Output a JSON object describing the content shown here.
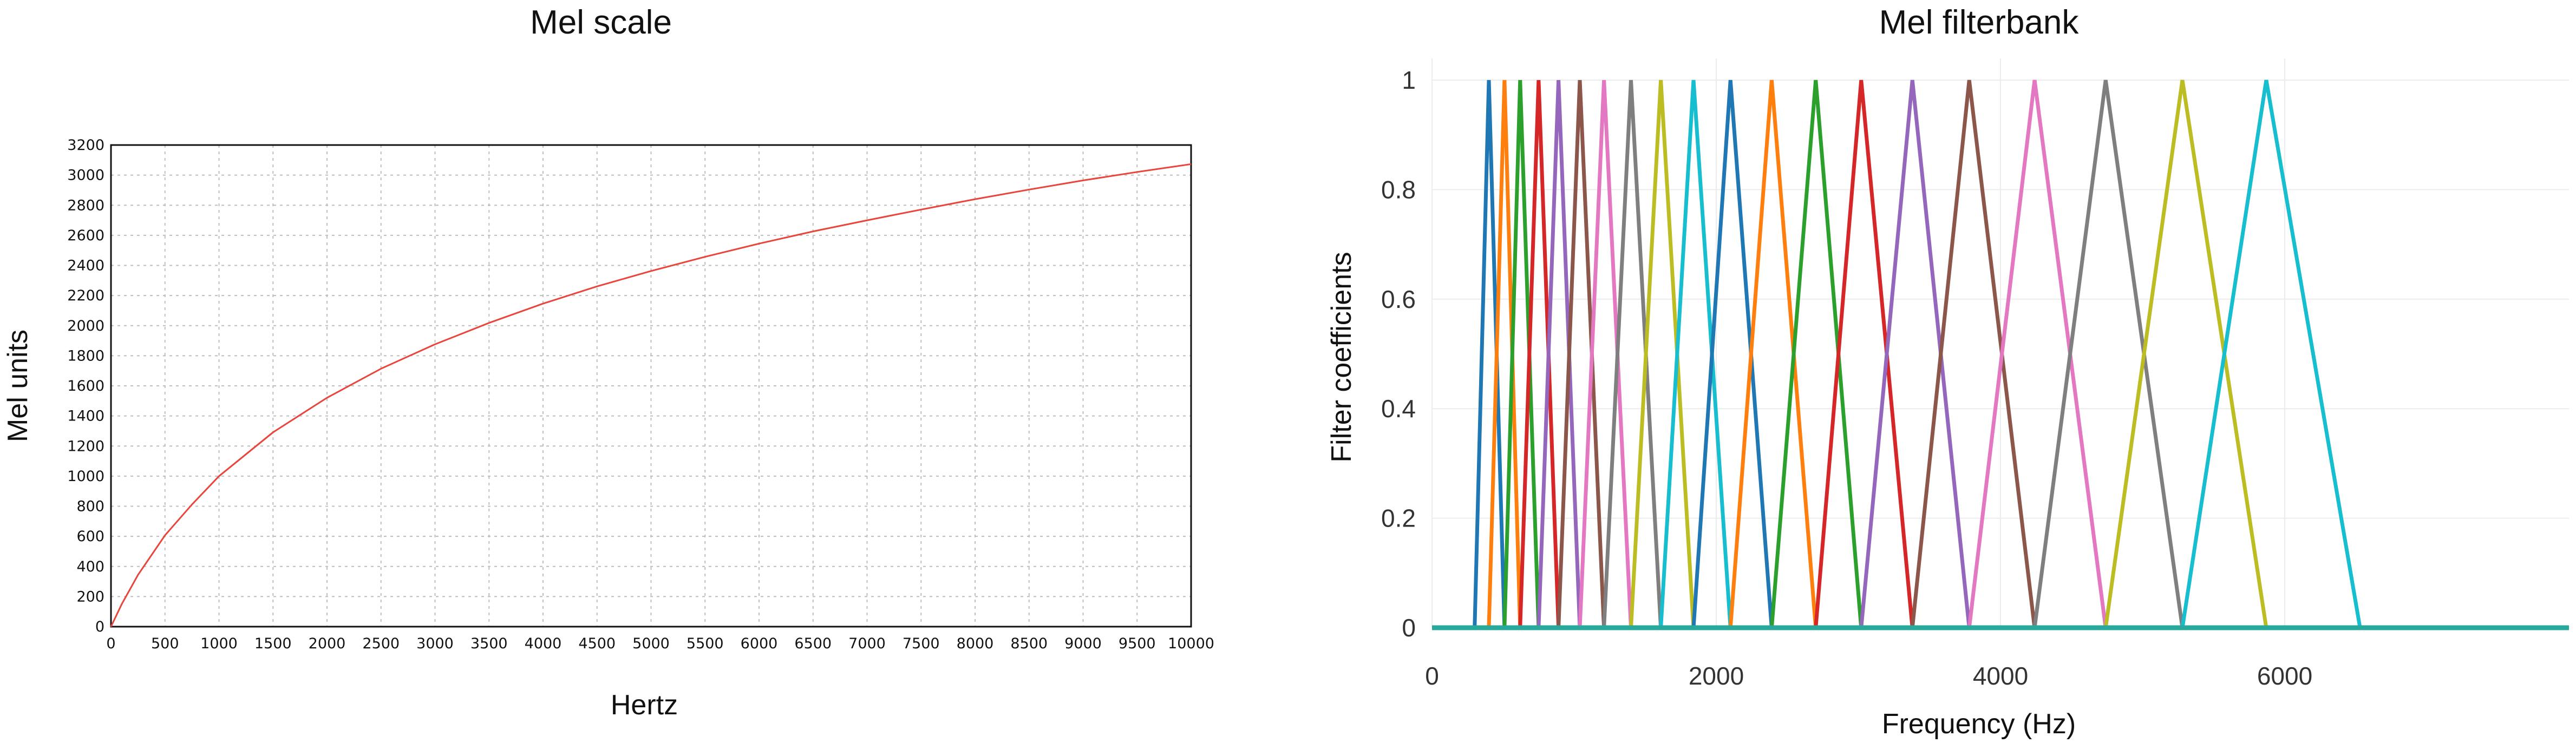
{
  "chart_data": [
    {
      "type": "line",
      "title": "Mel scale",
      "xlabel": "Hertz",
      "ylabel": "Mel units",
      "xlim": [
        0,
        10000
      ],
      "ylim": [
        0,
        3200
      ],
      "xticks": [
        0,
        500,
        1000,
        1500,
        2000,
        2500,
        3000,
        3500,
        4000,
        4500,
        5000,
        5500,
        6000,
        6500,
        7000,
        7500,
        8000,
        8500,
        9000,
        9500,
        10000
      ],
      "yticks": [
        0,
        200,
        400,
        600,
        800,
        1000,
        1200,
        1400,
        1600,
        1800,
        2000,
        2200,
        2400,
        2600,
        2800,
        3000,
        3200
      ],
      "grid": true,
      "line_color": "#e8453c",
      "series": [
        {
          "x": [
            0,
            100,
            250,
            500,
            750,
            1000,
            1500,
            2000,
            2500,
            3000,
            3500,
            4000,
            4500,
            5000,
            5500,
            6000,
            6500,
            7000,
            7500,
            8000,
            8500,
            9000,
            9500,
            10000
          ],
          "values": [
            0,
            150,
            344,
            607,
            812,
            1000,
            1291,
            1521,
            1714,
            1876,
            2018,
            2146,
            2261,
            2363,
            2457,
            2545,
            2626,
            2700,
            2771,
            2840,
            2904,
            2965,
            3021,
            3073
          ]
        }
      ]
    },
    {
      "type": "line",
      "title": "Mel filterbank",
      "xlabel": "Frequency (Hz)",
      "ylabel": "Filter coefficients",
      "xlim": [
        0,
        8000
      ],
      "ylim": [
        0,
        1
      ],
      "xticks": [
        0,
        2000,
        4000,
        6000
      ],
      "yticks": [
        0,
        0.2,
        0.4,
        0.6,
        0.8,
        1
      ],
      "ytick_labels": [
        "0",
        "0.2",
        "0.4",
        "0.6",
        "0.8",
        "1"
      ],
      "grid": true,
      "filter_points_hz": [
        300,
        400,
        510,
        620,
        750,
        890,
        1040,
        1210,
        1400,
        1610,
        1840,
        2100,
        2390,
        2700,
        3020,
        3380,
        3780,
        4240,
        4740,
        5280,
        5870,
        6530
      ],
      "series_colors": [
        "#1f77b4",
        "#ff7f0e",
        "#2ca02c",
        "#d62728",
        "#9467bd",
        "#8c564b",
        "#e377c2",
        "#7f7f7f",
        "#bcbd22",
        "#17becf"
      ]
    }
  ]
}
